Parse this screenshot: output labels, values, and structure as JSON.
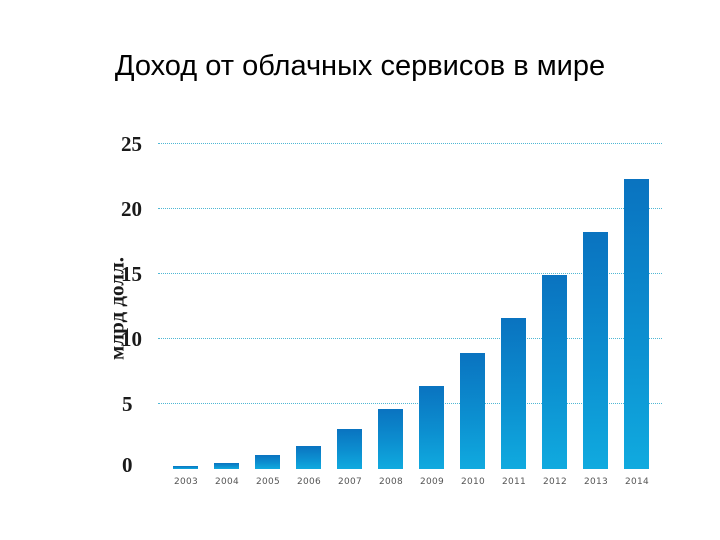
{
  "title": "Доход от облачных сервисов в мире",
  "chart_data": {
    "type": "bar",
    "title": "Доход от облачных сервисов в мире",
    "xlabel": "",
    "ylabel": "млрд долл.",
    "ylim": [
      0,
      25
    ],
    "yticks": [
      "0",
      "5",
      "10",
      "15",
      "20",
      "25"
    ],
    "grid": true,
    "legend": null,
    "bar_color_top": "#0a73c0",
    "bar_color_bottom": "#10aadf",
    "categories": [
      "2003",
      "2004",
      "2005",
      "2006",
      "2007",
      "2008",
      "2009",
      "2010",
      "2011",
      "2012",
      "2013",
      "2014"
    ],
    "values": [
      0.2,
      0.5,
      1.1,
      1.8,
      3.1,
      4.6,
      6.4,
      8.9,
      11.6,
      14.9,
      18.2,
      22.3
    ]
  }
}
